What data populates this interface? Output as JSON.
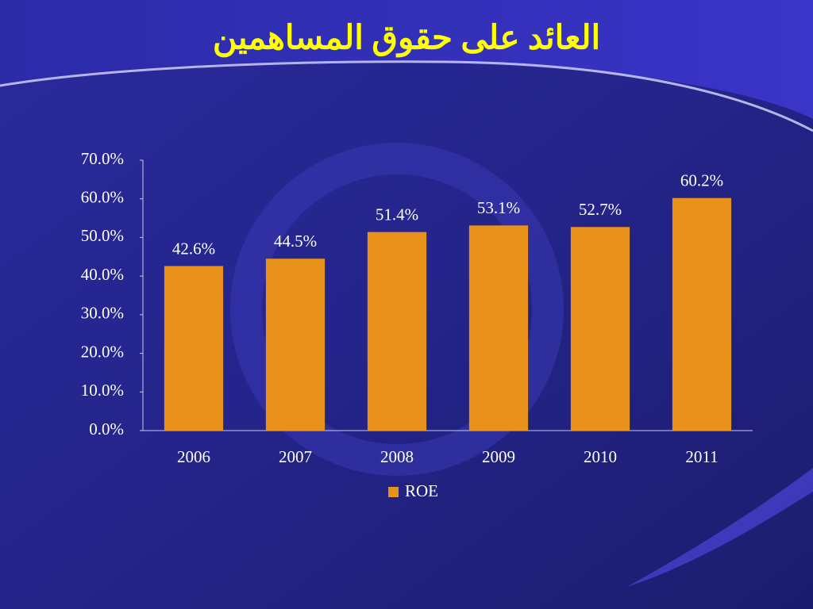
{
  "chart_data": {
    "type": "bar",
    "title": "العائد على حقوق المساهمين",
    "categories": [
      "2006",
      "2007",
      "2008",
      "2009",
      "2010",
      "2011"
    ],
    "series": [
      {
        "name": "ROE",
        "color": "#e8921c",
        "values": [
          42.6,
          44.5,
          51.4,
          53.1,
          52.7,
          60.2
        ],
        "value_labels": [
          "42.6%",
          "44.5%",
          "51.4%",
          "53.1%",
          "52.7%",
          "60.2%"
        ]
      }
    ],
    "ylim": [
      0,
      70
    ],
    "yticks": [
      {
        "value": 0,
        "label": "0.0%"
      },
      {
        "value": 10,
        "label": "10.0%"
      },
      {
        "value": 20,
        "label": "20.0%"
      },
      {
        "value": 30,
        "label": "30.0%"
      },
      {
        "value": 40,
        "label": "40.0%"
      },
      {
        "value": 50,
        "label": "50.0%"
      },
      {
        "value": 60,
        "label": "60.0%"
      },
      {
        "value": 70,
        "label": "70.0%"
      }
    ],
    "grid": false,
    "legend": "bottom"
  }
}
